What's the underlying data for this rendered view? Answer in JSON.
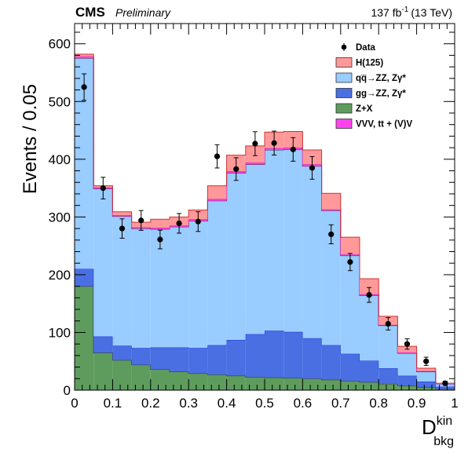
{
  "header": {
    "experiment": "CMS",
    "status": "Preliminary",
    "lumi_value": "137 fb",
    "lumi_exp": "-1",
    "lumi_energy": "(13 TeV)"
  },
  "chart_data": {
    "type": "bar",
    "stacked": true,
    "bin_edges": [
      0.0,
      0.05,
      0.1,
      0.15,
      0.2,
      0.25,
      0.3,
      0.35,
      0.4,
      0.45,
      0.5,
      0.55,
      0.6,
      0.65,
      0.7,
      0.75,
      0.8,
      0.85,
      0.9,
      0.95,
      1.0
    ],
    "xlim": [
      0,
      1
    ],
    "ylim": [
      0,
      635
    ],
    "xticks": [
      "0",
      "0.1",
      "0.2",
      "0.3",
      "0.4",
      "0.5",
      "0.6",
      "0.7",
      "0.8",
      "0.9",
      "1"
    ],
    "yticks": [
      "0",
      "100",
      "200",
      "300",
      "400",
      "500",
      "600"
    ],
    "xlabel": "D",
    "xlabel_sup": "kin",
    "xlabel_sub": "bkg",
    "ylabel": "Events / 0.05",
    "legend_position": "top-right",
    "series": [
      {
        "name": "Z+X",
        "color": "#5e9c5e",
        "values": [
          180,
          65,
          52,
          44,
          36,
          32,
          29,
          27,
          25,
          23,
          22,
          21,
          20,
          18,
          16,
          14,
          11,
          8,
          5,
          2
        ]
      },
      {
        "name": "gg→ZZ, Zγ*",
        "color": "#4a6fe3",
        "values": [
          30,
          28,
          25,
          29,
          38,
          42,
          44,
          51,
          62,
          74,
          81,
          80,
          70,
          60,
          47,
          37,
          27,
          17,
          10,
          4
        ]
      },
      {
        "name": "qq̅→ZZ, Zγ*",
        "color": "#99ccff",
        "values": [
          365,
          256,
          224,
          207,
          205,
          209,
          220,
          250,
          289,
          294,
          313,
          316,
          298,
          233,
          170,
          113,
          74,
          39,
          17,
          5
        ]
      },
      {
        "name": "VVV, tt + (V)V",
        "color": "#ff44ee",
        "values": [
          3,
          2,
          2,
          2,
          2,
          2,
          3,
          3,
          3,
          3,
          3,
          3,
          3,
          2,
          2,
          2,
          1,
          1,
          1,
          0
        ]
      },
      {
        "name": "H(125)",
        "color": "#ff9999",
        "values": [
          4,
          3,
          6,
          9,
          15,
          15,
          16,
          23,
          28,
          29,
          28,
          28,
          25,
          28,
          30,
          27,
          15,
          11,
          5,
          1
        ]
      }
    ],
    "data_series": {
      "name": "Data",
      "x": [
        0.025,
        0.075,
        0.125,
        0.175,
        0.225,
        0.275,
        0.325,
        0.375,
        0.425,
        0.475,
        0.525,
        0.575,
        0.625,
        0.675,
        0.725,
        0.775,
        0.825,
        0.875,
        0.925,
        0.975
      ],
      "y": [
        525,
        350,
        280,
        294,
        261,
        289,
        292,
        405,
        383,
        427,
        428,
        417,
        385,
        270,
        222,
        165,
        115,
        80,
        50,
        12
      ]
    },
    "legend_order": [
      "Data",
      "H(125)",
      "qq̅→ZZ, Zγ*",
      "gg→ZZ, Zγ*",
      "Z+X",
      "VVV, tt + (V)V"
    ]
  }
}
